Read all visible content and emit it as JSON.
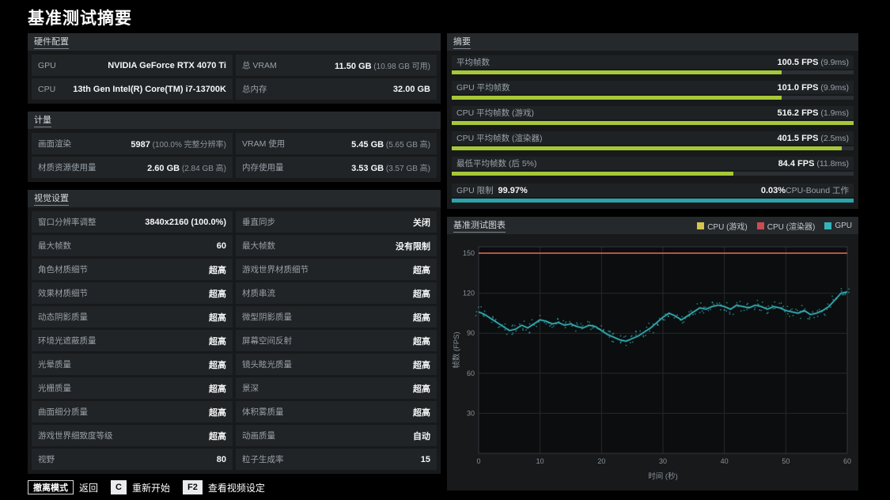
{
  "page_title": "基准测试摘要",
  "accent_colors": {
    "green": "#a6c838",
    "teal": "#2ba3a8",
    "red": "#c94d52",
    "yellow": "#d5c54c"
  },
  "hardware": {
    "title": "硬件配置",
    "cells": [
      {
        "label": "GPU",
        "value": "NVIDIA GeForce RTX 4070 Ti"
      },
      {
        "label": "总 VRAM",
        "value": "11.50 GB",
        "note": "(10.98 GB 可用)"
      },
      {
        "label": "CPU",
        "value": "13th Gen Intel(R) Core(TM) i7-13700K"
      },
      {
        "label": "总内存",
        "value": "32.00 GB"
      }
    ]
  },
  "metrics": {
    "title": "计量",
    "cells": [
      {
        "label": "画面渲染",
        "value": "5987",
        "note": "(100.0% 完整分辨率)"
      },
      {
        "label": "VRAM 使用",
        "value": "5.45 GB",
        "note": "(5.65 GB 高)"
      },
      {
        "label": "材质资源使用量",
        "value": "2.60 GB",
        "note": "(2.84 GB 高)"
      },
      {
        "label": "内存使用量",
        "value": "3.53 GB",
        "note": "(3.57 GB 高)"
      }
    ]
  },
  "settings": {
    "title": "视觉设置",
    "cells": [
      {
        "label": "窗口分辨率调整",
        "value": "3840x2160 (100.0%)"
      },
      {
        "label": "垂直同步",
        "value": "关闭"
      },
      {
        "label": "最大帧数",
        "value": "60"
      },
      {
        "label": "最大帧数",
        "value": "没有限制"
      },
      {
        "label": "角色材质细节",
        "value": "超高"
      },
      {
        "label": "游戏世界材质细节",
        "value": "超高"
      },
      {
        "label": "效果材质细节",
        "value": "超高"
      },
      {
        "label": "材质串流",
        "value": "超高"
      },
      {
        "label": "动态阴影质量",
        "value": "超高"
      },
      {
        "label": "微型阴影质量",
        "value": "超高"
      },
      {
        "label": "环境光遮蔽质量",
        "value": "超高"
      },
      {
        "label": "屏幕空间反射",
        "value": "超高"
      },
      {
        "label": "光晕质量",
        "value": "超高"
      },
      {
        "label": "镜头眩光质量",
        "value": "超高"
      },
      {
        "label": "光栅质量",
        "value": "超高"
      },
      {
        "label": "景深",
        "value": "超高"
      },
      {
        "label": "曲面细分质量",
        "value": "超高"
      },
      {
        "label": "体积雾质量",
        "value": "超高"
      },
      {
        "label": "游戏世界细致度等级",
        "value": "超高"
      },
      {
        "label": "动画质量",
        "value": "自动"
      },
      {
        "label": "视野",
        "value": "80"
      },
      {
        "label": "粒子生成率",
        "value": "15"
      }
    ]
  },
  "summary": {
    "title": "摘要",
    "rows": [
      {
        "label": "平均帧数",
        "value": "100.5 FPS",
        "note": "(9.9ms)",
        "bar_pct": 82
      },
      {
        "label": "GPU 平均帧数",
        "value": "101.0 FPS",
        "note": "(9.9ms)",
        "bar_pct": 82
      },
      {
        "label": "CPU 平均帧数 (游戏)",
        "value": "516.2 FPS",
        "note": "(1.9ms)",
        "bar_pct": 100
      },
      {
        "label": "CPU 平均帧数 (渲染器)",
        "value": "401.5 FPS",
        "note": "(2.5ms)",
        "bar_pct": 97
      },
      {
        "label": "最低平均帧数 (后 5%)",
        "value": "84.4 FPS",
        "note": "(11.8ms)",
        "bar_pct": 70
      }
    ],
    "gpu_limit": {
      "label": "GPU 限制",
      "value": "99.97%",
      "right_value": "0.03%",
      "right_label": "CPU-Bound 工作",
      "pct": 99.97
    }
  },
  "chart_data": {
    "type": "line",
    "title": "基准测试图表",
    "xlabel": "时间 (秒)",
    "ylabel": "帧数 (FPS)",
    "xlim": [
      0,
      60
    ],
    "ylim": [
      0,
      150
    ],
    "x_ticks": [
      0,
      10,
      20,
      30,
      40,
      50,
      60
    ],
    "y_ticks": [
      30,
      60,
      90,
      120,
      150
    ],
    "grid": true,
    "legend_position": "top-right",
    "series": [
      {
        "name": "CPU (游戏)",
        "color": "#d5c54c",
        "avg_fps": 516.2,
        "clipped_at_top": true
      },
      {
        "name": "CPU (渲染器)",
        "color": "#c94d52",
        "avg_fps": 401.5,
        "clipped_at_top": true
      },
      {
        "name": "GPU",
        "color": "#35b3ba",
        "x_step": 1,
        "values": [
          106,
          104,
          101,
          98,
          95,
          92,
          93,
          96,
          94,
          97,
          100,
          99,
          97,
          98,
          96,
          97,
          95,
          94,
          96,
          95,
          92,
          89,
          87,
          85,
          84,
          86,
          88,
          91,
          94,
          98,
          102,
          105,
          103,
          100,
          103,
          106,
          109,
          108,
          110,
          111,
          110,
          108,
          111,
          110,
          109,
          111,
          110,
          108,
          110,
          109,
          107,
          106,
          105,
          107,
          104,
          105,
          107,
          110,
          115,
          120,
          121
        ]
      }
    ]
  },
  "footer": {
    "hints": [
      {
        "key": "撤离模式",
        "label": "返回",
        "style": "outline"
      },
      {
        "key": "C",
        "label": "重新开始",
        "style": "solid"
      },
      {
        "key": "F2",
        "label": "查看视频设定",
        "style": "solid"
      }
    ]
  }
}
